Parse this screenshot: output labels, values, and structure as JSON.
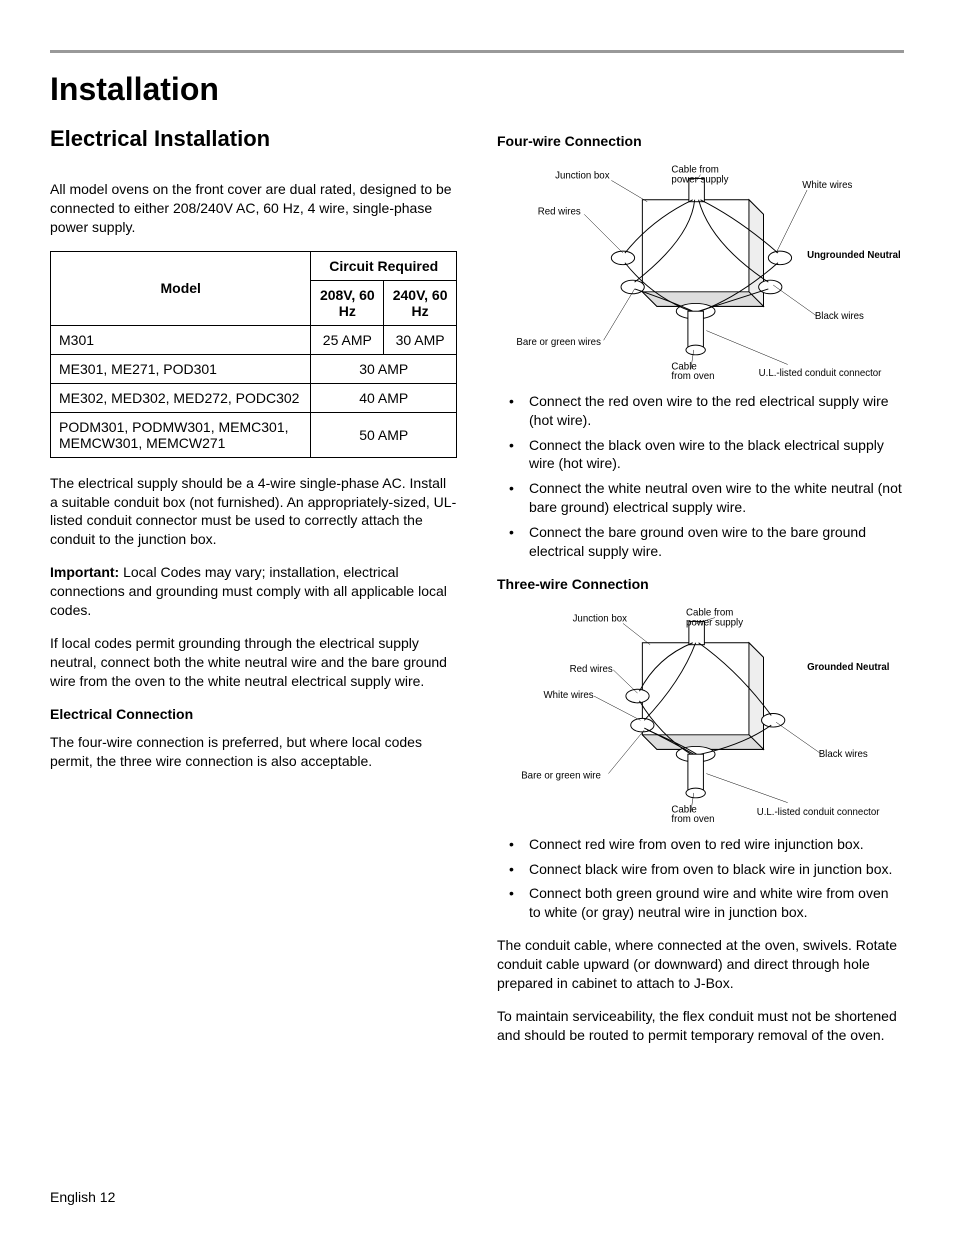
{
  "page": {
    "title": "Installation",
    "section": "Electrical Installation",
    "footer": "English 12"
  },
  "left": {
    "intro": "All model ovens on the front cover are dual rated, designed to be connected to either 208/240V AC, 60 Hz, 4 wire, single-phase power supply.",
    "table": {
      "head_model": "Model",
      "head_circuit": "Circuit Required",
      "head_208": "208V, 60 Hz",
      "head_240": "240V, 60 Hz",
      "rows": [
        {
          "model": "M301",
          "v208": "25 AMP",
          "v240": "30 AMP",
          "span": false
        },
        {
          "model": "ME301, ME271, POD301",
          "merged": "30 AMP",
          "span": true
        },
        {
          "model": "ME302, MED302, MED272, PODC302",
          "merged": "40 AMP",
          "span": true
        },
        {
          "model": "PODM301, PODMW301, MEMC301, MEMCW301, MEMCW271",
          "merged": "50 AMP",
          "span": true
        }
      ]
    },
    "p_supply": "The electrical supply should be a 4-wire single-phase AC. Install a suitable conduit box (not furnished). An appropriately-sized, UL-listed conduit connector must be used to correctly attach the conduit to the junction box.",
    "p_important_label": "Important:",
    "p_important": " Local Codes may vary; installation, electrical connections and grounding must comply with all applicable local codes.",
    "p_grounding": "If local codes permit grounding through the electrical supply neutral, connect both the white neutral wire and the bare ground wire from the oven to the white neutral electrical supply wire.",
    "h_connection": "Electrical Connection",
    "p_connection": "The four-wire connection is preferred, but where local codes permit, the three wire connection is also acceptable."
  },
  "right": {
    "h_four": "Four-wire Connection",
    "diagram4": {
      "type": "wiring-diagram",
      "box_stroke": "#000",
      "bg": "#ffffff",
      "labels": {
        "junction": "Junction box",
        "cable_ps": "Cable from power supply",
        "white": "White wires",
        "red": "Red wires",
        "title": "Ungrounded Neutral",
        "black": "Black wires",
        "bare": "Bare or green wires",
        "cable_oven": "Cable from oven",
        "ul": "U.L.-listed conduit connector"
      }
    },
    "four_bullets": [
      "Connect the red oven wire to the red electrical supply wire (hot wire).",
      "Connect the black oven wire to the black electrical supply wire (hot wire).",
      "Connect the white neutral oven wire to the white neutral (not bare ground) electrical supply wire.",
      "Connect the bare ground oven wire to the bare ground electrical supply wire."
    ],
    "h_three": "Three-wire Connection",
    "diagram3": {
      "type": "wiring-diagram",
      "box_stroke": "#000",
      "bg": "#ffffff",
      "labels": {
        "junction": "Junction box",
        "cable_ps": "Cable from power supply",
        "title": "Grounded Neutral",
        "red": "Red wires",
        "white": "White wires",
        "black": "Black wires",
        "bare": "Bare or green wire",
        "cable_oven": "Cable from oven",
        "ul": "U.L.-listed conduit connector"
      }
    },
    "three_bullets": [
      "Connect red wire from oven to red wire injunction box.",
      "Connect black wire from oven to black wire in junction box.",
      "Connect both green ground wire and white wire from oven to white (or gray) neutral wire in junction box."
    ],
    "p_conduit": "The conduit cable, where connected at the oven, swivels. Rotate conduit cable upward (or downward) and direct through hole prepared in cabinet to attach to J-Box.",
    "p_service": "To maintain serviceability, the flex conduit must not be shortened and should be routed to permit temporary removal of the oven."
  }
}
